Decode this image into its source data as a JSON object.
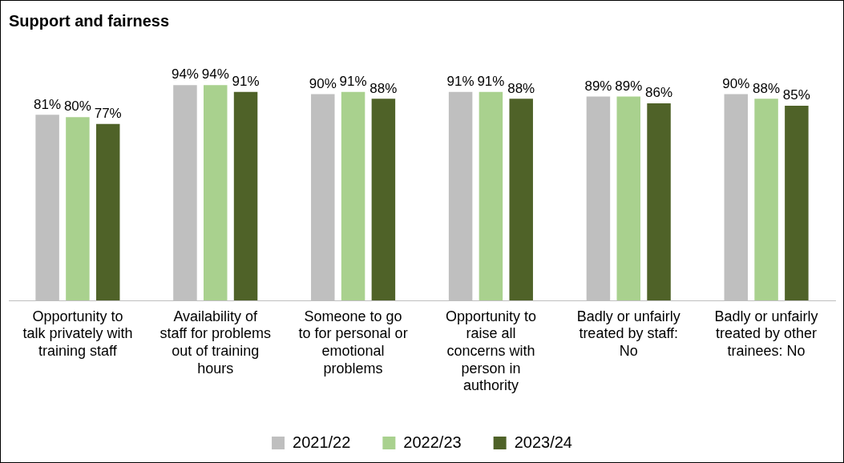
{
  "chart_data": {
    "type": "bar",
    "title": "Support and fairness",
    "categories": [
      "Opportunity to talk privately with training staff",
      "Availability of staff for problems out of training hours",
      "Someone to go to for personal or emotional problems",
      "Opportunity to raise all concerns with person in authority",
      "Badly or unfairly treated by staff: No",
      "Badly or unfairly treated by other trainees: No"
    ],
    "series": [
      {
        "name": "2021/22",
        "color": "#bfbfbf",
        "values": [
          81,
          94,
          90,
          91,
          89,
          90
        ],
        "value_labels": [
          "81%",
          "94%",
          "90%",
          "91%",
          "89%",
          "90%"
        ]
      },
      {
        "name": "2022/23",
        "color": "#a9d18e",
        "values": [
          80,
          94,
          91,
          91,
          89,
          88
        ],
        "value_labels": [
          "80%",
          "94%",
          "91%",
          "91%",
          "89%",
          "88%"
        ]
      },
      {
        "name": "2023/24",
        "color": "#4f6228",
        "values": [
          77,
          91,
          88,
          88,
          86,
          85
        ],
        "value_labels": [
          "77%",
          "91%",
          "88%",
          "88%",
          "86%",
          "85%"
        ]
      }
    ],
    "tick_labels": "x",
    "grid": false,
    "legend": "bottom"
  }
}
